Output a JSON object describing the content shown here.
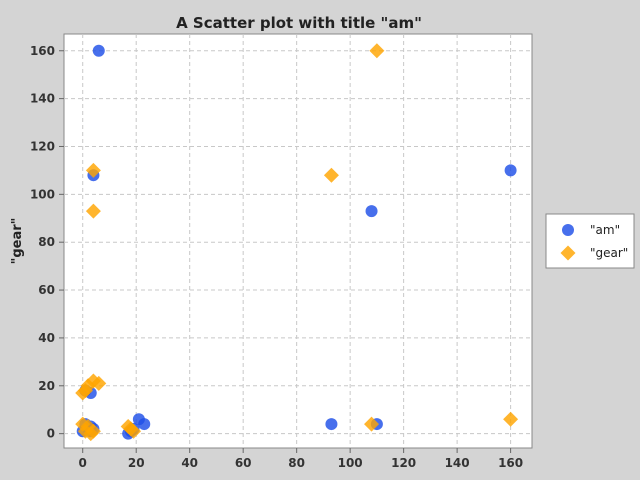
{
  "chart_data": {
    "type": "scatter",
    "title": "A Scatter plot with title \"am\"",
    "xlabel": "",
    "ylabel": "\"gear\"",
    "xlim": [
      -7,
      168
    ],
    "ylim": [
      -6,
      167
    ],
    "x_ticks": [
      0,
      20,
      40,
      60,
      80,
      100,
      120,
      140,
      160
    ],
    "y_ticks": [
      0,
      20,
      40,
      60,
      80,
      100,
      120,
      140,
      160
    ],
    "grid": true,
    "legend_position": "right",
    "series": [
      {
        "name": "\"am\"",
        "marker": "circle",
        "color": "#1f4fe8",
        "points": [
          [
            6,
            160
          ],
          [
            4,
            108
          ],
          [
            160,
            110
          ],
          [
            108,
            93
          ],
          [
            93,
            4
          ],
          [
            110,
            4
          ],
          [
            1,
            18
          ],
          [
            3,
            17
          ],
          [
            0,
            1
          ],
          [
            1,
            4
          ],
          [
            2,
            2
          ],
          [
            3,
            1
          ],
          [
            3,
            3
          ],
          [
            4,
            2
          ],
          [
            17,
            0
          ],
          [
            18,
            1
          ],
          [
            19,
            2
          ],
          [
            21,
            6
          ],
          [
            23,
            4
          ]
        ]
      },
      {
        "name": "\"gear\"",
        "marker": "diamond",
        "color": "#ffa500",
        "points": [
          [
            110,
            160
          ],
          [
            4,
            110
          ],
          [
            93,
            108
          ],
          [
            4,
            93
          ],
          [
            160,
            6
          ],
          [
            108,
            4
          ],
          [
            0,
            17
          ],
          [
            1,
            18
          ],
          [
            2,
            20
          ],
          [
            4,
            22
          ],
          [
            6,
            21
          ],
          [
            0,
            4
          ],
          [
            1,
            1
          ],
          [
            2,
            3
          ],
          [
            3,
            0
          ],
          [
            4,
            1
          ],
          [
            17,
            3
          ],
          [
            18,
            2
          ],
          [
            19,
            1
          ]
        ]
      }
    ]
  }
}
